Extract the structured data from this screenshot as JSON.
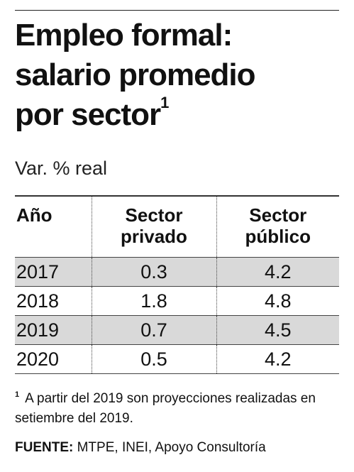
{
  "chart_data": {
    "type": "table",
    "title": "Empleo formal: salario promedio por sector",
    "title_footnote_marker": "1",
    "subtitle": "Var. % real",
    "columns": [
      "Año",
      "Sector privado",
      "Sector público"
    ],
    "rows": [
      {
        "year": "2017",
        "privado": "0.3",
        "publico": "4.2",
        "shaded": true
      },
      {
        "year": "2018",
        "privado": "1.8",
        "publico": "4.8",
        "shaded": false
      },
      {
        "year": "2019",
        "privado": "0.7",
        "publico": "4.5",
        "shaded": true
      },
      {
        "year": "2020",
        "privado": "0.5",
        "publico": "4.2",
        "shaded": false
      }
    ],
    "footnote_marker": "1",
    "footnote": "A partir del 2019 son proyecciones realizadas en setiembre del 2019.",
    "source_label": "FUENTE:",
    "source_text": "MTPE, INEI, Apoyo Consultoría"
  },
  "header": {
    "title_line1": "Empleo formal:",
    "title_line2": "salario promedio",
    "title_line3": "por sector",
    "col_year": "Año",
    "col_private_line1": "Sector",
    "col_private_line2": "privado",
    "col_public_line1": "Sector",
    "col_public_line2": "público"
  },
  "colors": {
    "shaded_row": "#d9d9d9",
    "text": "#111111",
    "rules": "#333333"
  }
}
